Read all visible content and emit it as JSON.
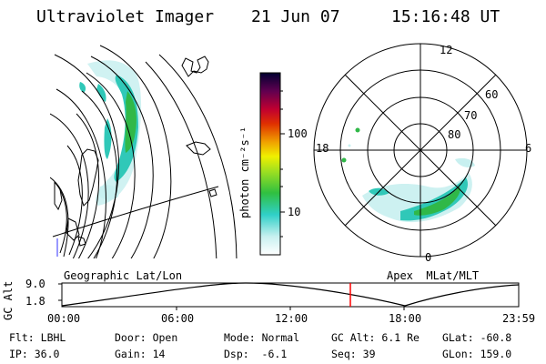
{
  "header": {
    "instrument": "Ultraviolet Imager",
    "date": "21 Jun 07",
    "time": "15:16:48 UT"
  },
  "colorbar": {
    "unit_label": "photon cm⁻²s⁻¹",
    "ticks": [
      "100",
      "10"
    ]
  },
  "polar": {
    "mlt_labels": [
      "12",
      "18",
      "6",
      "0"
    ],
    "lat_labels": [
      "60",
      "70",
      "80"
    ]
  },
  "altitude_plot": {
    "ylabel": "GC Alt",
    "y_ticks": [
      "9.0",
      "1.8"
    ],
    "left_caption": "Geographic Lat/Lon",
    "right_caption": "Apex  MLat/MLT",
    "x_ticks": [
      "00:00",
      "06:00",
      "12:00",
      "18:00",
      "23:59"
    ],
    "current_time_marker": "15:16:48"
  },
  "footer": {
    "row1": [
      {
        "key": "Flt:",
        "val": "LBHL"
      },
      {
        "key": "Door:",
        "val": "Open"
      },
      {
        "key": "Mode:",
        "val": "Normal"
      },
      {
        "key": "GC Alt:",
        "val": "6.1 Re"
      },
      {
        "key": "GLat:",
        "val": "-60.8"
      }
    ],
    "row2": [
      {
        "key": "IP:",
        "val": "36.0"
      },
      {
        "key": "Gain:",
        "val": "14"
      },
      {
        "key": "Dsp:",
        "val": "  -6.1"
      },
      {
        "key": "Seq:",
        "val": "39"
      },
      {
        "key": "GLon:",
        "val": "159.0"
      }
    ]
  },
  "colors": {
    "aurora_low": "#9fe8e8",
    "aurora_mid": "#30c8b8",
    "aurora_high": "#30c030",
    "marker": "#ff0000"
  }
}
